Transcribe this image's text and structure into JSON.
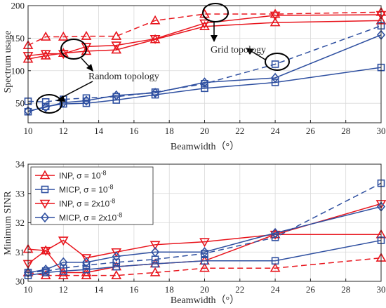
{
  "colors": {
    "red": "#e8141c",
    "blue": "#2e4fa0",
    "axis": "#262626",
    "grid": "#d9d9d9"
  },
  "chart_data": [
    {
      "type": "line",
      "xlabel": "Beamwidth（°）",
      "ylabel": "Spectrum usage",
      "xlim": [
        10,
        30
      ],
      "ylim": [
        20,
        200
      ],
      "xticks": [
        10,
        12,
        14,
        16,
        18,
        20,
        22,
        24,
        26,
        28,
        30
      ],
      "yticks": [
        50,
        100,
        150,
        200
      ],
      "grid": true,
      "x": [
        10,
        11,
        12,
        13.3,
        15,
        17.2,
        20,
        24,
        30
      ],
      "series": [
        {
          "key": "inp_solid",
          "color": "red",
          "dash": false,
          "marker": "triangle-up",
          "values": [
            118,
            123,
            127,
            130,
            132,
            148,
            168,
            174,
            177
          ]
        },
        {
          "key": "inp_dashed",
          "color": "red",
          "dash": true,
          "marker": "triangle-up",
          "values": [
            139,
            152,
            152,
            153,
            153,
            177,
            187,
            187,
            190
          ]
        },
        {
          "key": "inp2_solid",
          "color": "red",
          "dash": false,
          "marker": "triangle-down",
          "values": [
            123,
            126,
            126,
            137,
            139,
            149,
            173,
            185,
            186
          ]
        },
        {
          "key": "micp_solid",
          "color": "blue",
          "dash": false,
          "marker": "square",
          "values": [
            37,
            45,
            49,
            50,
            55,
            63,
            73,
            82,
            105
          ]
        },
        {
          "key": "micp_dashed",
          "color": "blue",
          "dash": true,
          "marker": "square",
          "values": [
            53,
            52,
            56,
            58,
            60,
            67,
            80,
            110,
            169
          ]
        },
        {
          "key": "micp2_solid",
          "color": "blue",
          "dash": false,
          "marker": "diamond",
          "values": [
            38,
            44,
            51,
            54,
            62,
            66,
            82,
            89,
            155
          ]
        }
      ],
      "annotations": [
        {
          "text": "Grid topology"
        },
        {
          "text": "Random topology"
        }
      ]
    },
    {
      "type": "line",
      "xlabel": "Beamwidth（°）",
      "ylabel": "Minimum SINR",
      "xlim": [
        10,
        30
      ],
      "ylim": [
        30,
        34
      ],
      "xticks": [
        10,
        12,
        14,
        16,
        18,
        20,
        22,
        24,
        26,
        28,
        30
      ],
      "yticks": [
        30,
        31,
        32,
        33,
        34
      ],
      "grid": true,
      "x": [
        10,
        11,
        12,
        13.3,
        15,
        17.2,
        20,
        24,
        30
      ],
      "series": [
        {
          "key": "inp_solid",
          "color": "red",
          "dash": false,
          "marker": "triangle-up",
          "values": [
            31.1,
            31.05,
            30.3,
            30.3,
            30.5,
            30.6,
            30.7,
            31.6,
            31.6
          ]
        },
        {
          "key": "inp_dashed",
          "color": "red",
          "dash": true,
          "marker": "triangle-up",
          "values": [
            30.3,
            30.2,
            30.2,
            30.2,
            30.2,
            30.3,
            30.45,
            30.45,
            30.8
          ]
        },
        {
          "key": "inp2_solid",
          "color": "red",
          "dash": false,
          "marker": "triangle-down",
          "values": [
            30.6,
            31.05,
            31.4,
            30.8,
            31.0,
            31.25,
            31.35,
            31.6,
            32.65
          ]
        },
        {
          "key": "micp_solid",
          "color": "blue",
          "dash": false,
          "marker": "square",
          "values": [
            30.2,
            30.3,
            30.35,
            30.4,
            30.5,
            30.6,
            30.7,
            30.7,
            31.4
          ]
        },
        {
          "key": "micp_dashed",
          "color": "blue",
          "dash": true,
          "marker": "square",
          "values": [
            30.3,
            30.35,
            30.45,
            30.55,
            30.65,
            30.75,
            30.95,
            31.5,
            33.35
          ]
        },
        {
          "key": "micp2_solid",
          "color": "blue",
          "dash": false,
          "marker": "diamond",
          "values": [
            30.3,
            30.4,
            30.65,
            30.65,
            30.85,
            31.0,
            31.0,
            31.65,
            32.55
          ]
        }
      ],
      "legend": {
        "position": "top-left",
        "entries": [
          {
            "color": "red",
            "marker": "triangle-up",
            "name": "INP, σ = 10",
            "sup": "-8"
          },
          {
            "color": "blue",
            "marker": "square",
            "name": "MICP, σ = 10",
            "sup": "-8"
          },
          {
            "color": "red",
            "marker": "triangle-down",
            "name": "INP, σ = 2x10",
            "sup": "-8"
          },
          {
            "color": "blue",
            "marker": "diamond",
            "name": "MICP, σ = 2x10",
            "sup": "-8"
          }
        ]
      }
    }
  ]
}
